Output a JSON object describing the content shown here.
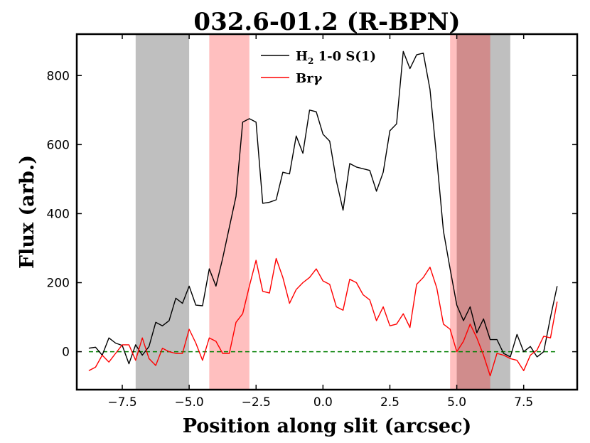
{
  "chart_data": {
    "type": "line",
    "title": "032.6-01.2 (R-BPN)",
    "xlabel": "Position along slit (arcsec)",
    "ylabel": "Flux (arb.)",
    "xlim": [
      -9.2,
      9.5
    ],
    "ylim": [
      -110,
      920
    ],
    "xticks": [
      -7.5,
      -5.0,
      -2.5,
      0.0,
      2.5,
      5.0,
      7.5
    ],
    "xtick_labels": [
      "−7.5",
      "−5.0",
      "−2.5",
      "0.0",
      "2.5",
      "5.0",
      "7.5"
    ],
    "yticks": [
      0,
      200,
      400,
      600,
      800
    ],
    "ytick_labels": [
      "0",
      "200",
      "400",
      "600",
      "800"
    ],
    "legend_position": "top-center",
    "shaded_regions": [
      {
        "x0": -7.0,
        "x1": -5.0,
        "color": "#bfbfbf"
      },
      {
        "x0": -4.25,
        "x1": -2.75,
        "color": "#ffbfbf"
      },
      {
        "x0": 4.75,
        "x1": 6.25,
        "color": "#ffbfbf"
      },
      {
        "x0": 5.0,
        "x1": 7.0,
        "color": "#bfbfbf"
      },
      {
        "x0": 5.0,
        "x1": 6.25,
        "color": "#d08c8c"
      }
    ],
    "reference_line": {
      "y": 0,
      "color": "#007f00",
      "style": "dashed"
    },
    "series": [
      {
        "name": "H$_2$ 1-0 S(1)",
        "label_main": "H",
        "label_sub": "2",
        "label_rest": " 1-0 S(1)",
        "color": "#000000",
        "x": [
          -8.75,
          -8.5,
          -8.25,
          -8.0,
          -7.75,
          -7.5,
          -7.25,
          -7.0,
          -6.75,
          -6.5,
          -6.25,
          -6.0,
          -5.75,
          -5.5,
          -5.25,
          -5.0,
          -4.75,
          -4.5,
          -4.25,
          -4.0,
          -3.75,
          -3.5,
          -3.25,
          -3.0,
          -2.75,
          -2.5,
          -2.25,
          -2.0,
          -1.75,
          -1.5,
          -1.25,
          -1.0,
          -0.75,
          -0.5,
          -0.25,
          0.0,
          0.25,
          0.5,
          0.75,
          1.0,
          1.25,
          1.5,
          1.75,
          2.0,
          2.25,
          2.5,
          2.75,
          3.0,
          3.25,
          3.5,
          3.75,
          4.0,
          4.25,
          4.5,
          4.75,
          5.0,
          5.25,
          5.5,
          5.75,
          6.0,
          6.25,
          6.5,
          6.75,
          7.0,
          7.25,
          7.5,
          7.75,
          8.0,
          8.25,
          8.5,
          8.75
        ],
        "y": [
          10,
          13,
          -10,
          40,
          25,
          18,
          -35,
          20,
          -10,
          15,
          85,
          75,
          90,
          155,
          140,
          190,
          135,
          133,
          240,
          190,
          270,
          360,
          450,
          665,
          675,
          665,
          430,
          433,
          440,
          520,
          515,
          625,
          575,
          700,
          695,
          630,
          610,
          495,
          410,
          545,
          535,
          530,
          525,
          465,
          520,
          640,
          660,
          870,
          820,
          860,
          865,
          760,
          560,
          350,
          240,
          135,
          90,
          130,
          55,
          95,
          35,
          35,
          -5,
          -15,
          50,
          0,
          15,
          -15,
          0,
          100,
          190
        ]
      },
      {
        "name": "Br$\\gamma$",
        "label_main": "Br",
        "label_sub": "",
        "label_rest": "γ",
        "color": "#ff0000",
        "x": [
          -8.75,
          -8.5,
          -8.25,
          -8.0,
          -7.75,
          -7.5,
          -7.25,
          -7.0,
          -6.75,
          -6.5,
          -6.25,
          -6.0,
          -5.75,
          -5.5,
          -5.25,
          -5.0,
          -4.75,
          -4.5,
          -4.25,
          -4.0,
          -3.75,
          -3.5,
          -3.25,
          -3.0,
          -2.75,
          -2.5,
          -2.25,
          -2.0,
          -1.75,
          -1.5,
          -1.25,
          -1.0,
          -0.75,
          -0.5,
          -0.25,
          0.0,
          0.25,
          0.5,
          0.75,
          1.0,
          1.25,
          1.5,
          1.75,
          2.0,
          2.25,
          2.5,
          2.75,
          3.0,
          3.25,
          3.5,
          3.75,
          4.0,
          4.25,
          4.5,
          4.75,
          5.0,
          5.25,
          5.5,
          5.75,
          6.0,
          6.25,
          6.5,
          6.75,
          7.0,
          7.25,
          7.5,
          7.75,
          8.0,
          8.25,
          8.5,
          8.75
        ],
        "y": [
          -55,
          -45,
          -10,
          -30,
          -5,
          20,
          20,
          -25,
          40,
          -20,
          -40,
          10,
          0,
          -5,
          -5,
          65,
          25,
          -25,
          40,
          30,
          -5,
          -5,
          85,
          110,
          190,
          265,
          175,
          170,
          270,
          215,
          140,
          180,
          200,
          215,
          240,
          205,
          195,
          130,
          120,
          210,
          200,
          165,
          150,
          90,
          130,
          75,
          80,
          110,
          70,
          195,
          215,
          245,
          185,
          80,
          65,
          0,
          30,
          80,
          40,
          -10,
          -70,
          -5,
          -10,
          -20,
          -25,
          -55,
          -10,
          5,
          45,
          40,
          145
        ]
      }
    ]
  }
}
